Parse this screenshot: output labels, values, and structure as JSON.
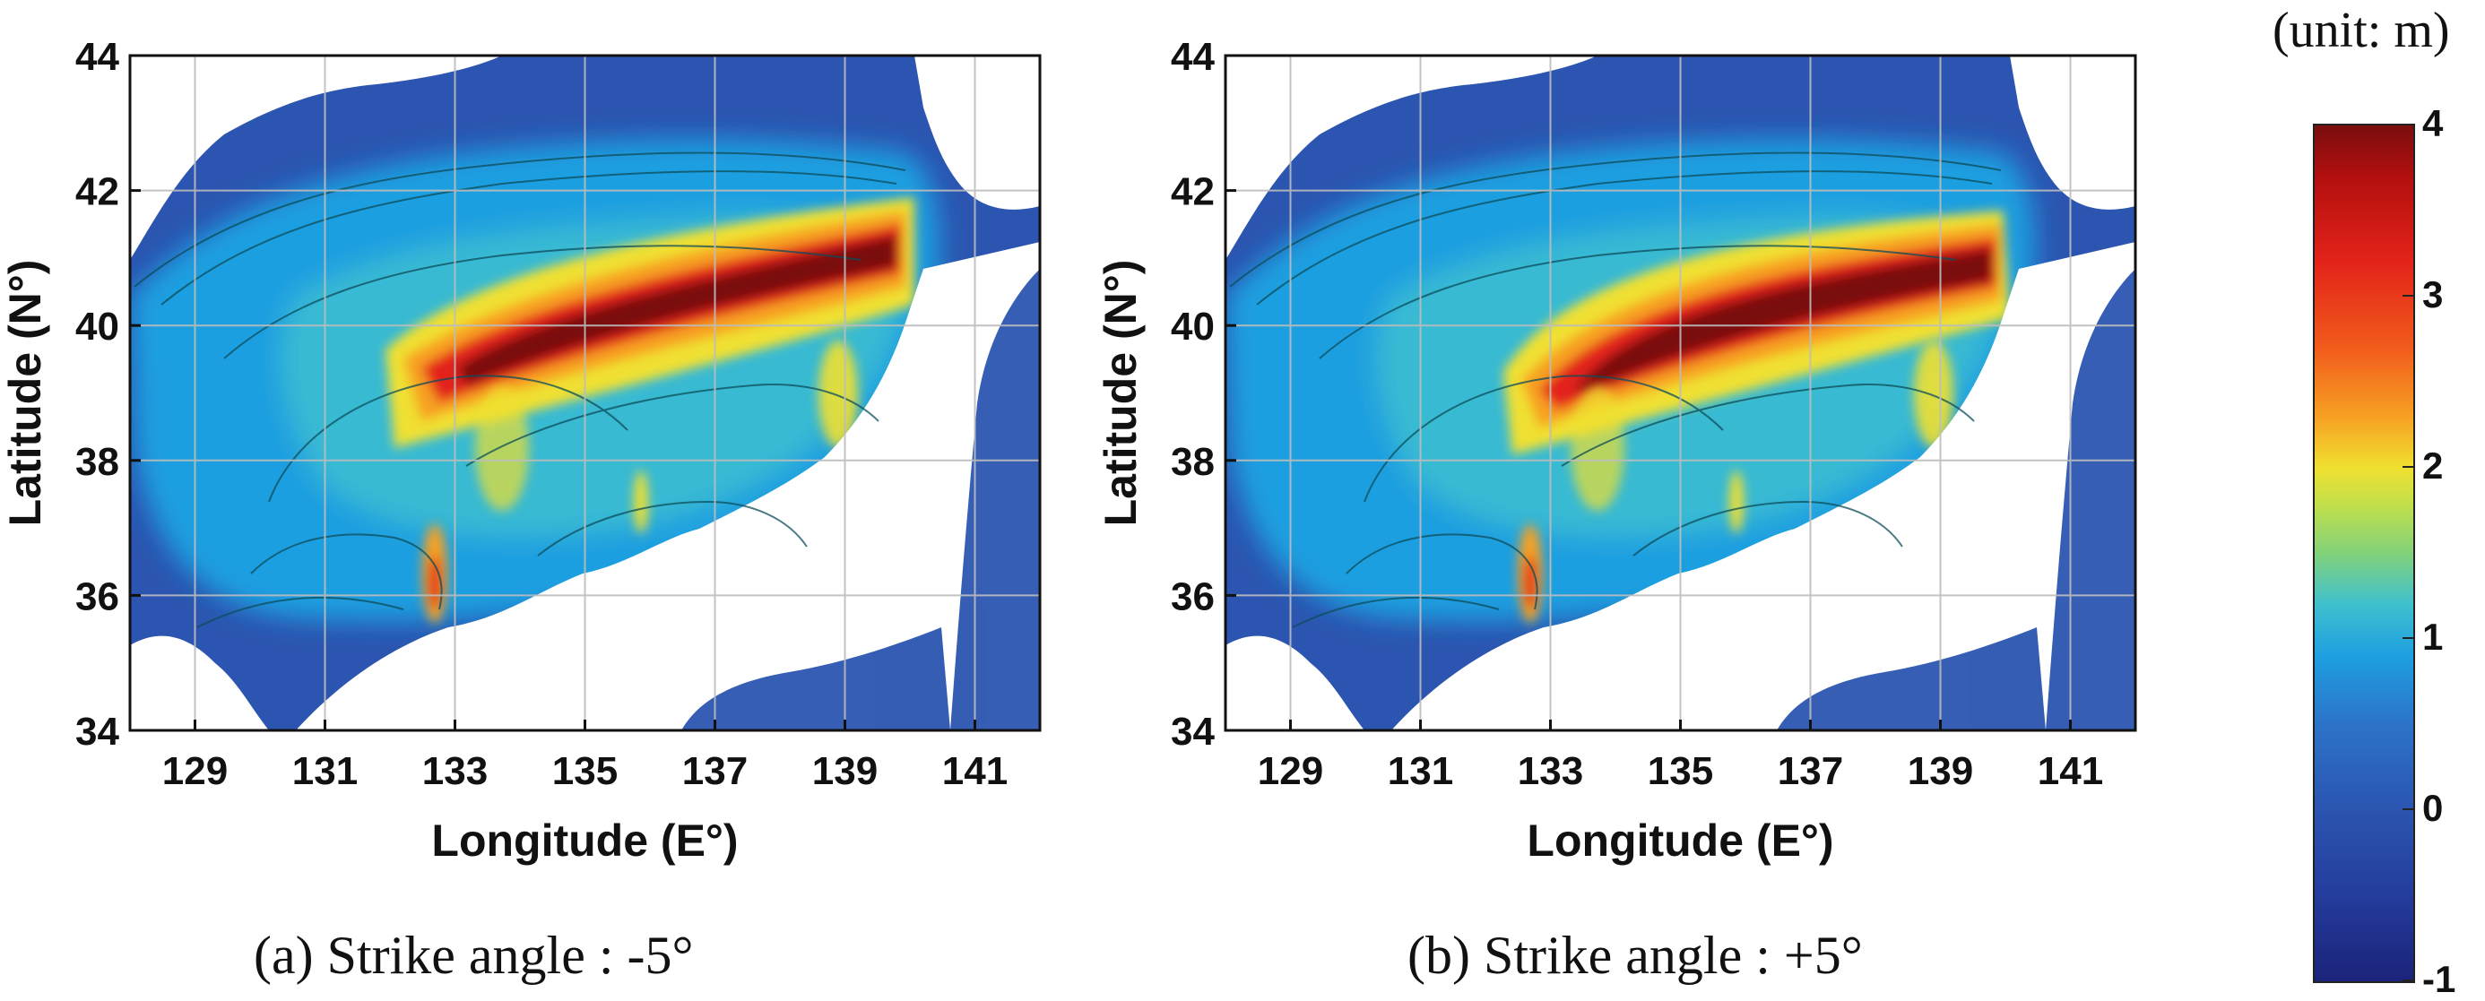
{
  "panels": [
    {
      "id": "a",
      "caption": "(a) Strike angle : -5°",
      "xlabel": "Longitude (E°)",
      "ylabel": "Latitude (N°)",
      "xticks": [
        "129",
        "131",
        "133",
        "135",
        "137",
        "139",
        "141"
      ],
      "yticks": [
        "34",
        "36",
        "38",
        "40",
        "42",
        "44"
      ],
      "xlim": [
        128,
        142
      ],
      "ylim": [
        34,
        44
      ]
    },
    {
      "id": "b",
      "caption": "(b) Strike angle : +5°",
      "xlabel": "Longitude (E°)",
      "ylabel": "Latitude (N°)",
      "xticks": [
        "129",
        "131",
        "133",
        "135",
        "137",
        "139",
        "141"
      ],
      "yticks": [
        "34",
        "36",
        "38",
        "40",
        "42",
        "44"
      ],
      "xlim": [
        128,
        142
      ],
      "ylim": [
        34,
        44
      ]
    }
  ],
  "colorbar": {
    "unit_label": "(unit: m)",
    "ticks": [
      "4",
      "3",
      "2",
      "1",
      "0",
      "-1"
    ],
    "range": [
      -1,
      4
    ]
  },
  "colors": {
    "sea_low": "#2b55b0",
    "sea_mid": "#1e9fe0",
    "cyan": "#3fc0cf",
    "yellow": "#f0e030",
    "orange": "#f7a023",
    "red": "#e3231a",
    "dark_red": "#7a0e0e",
    "land": "#ffffff",
    "grid": "#bdbdbd"
  }
}
